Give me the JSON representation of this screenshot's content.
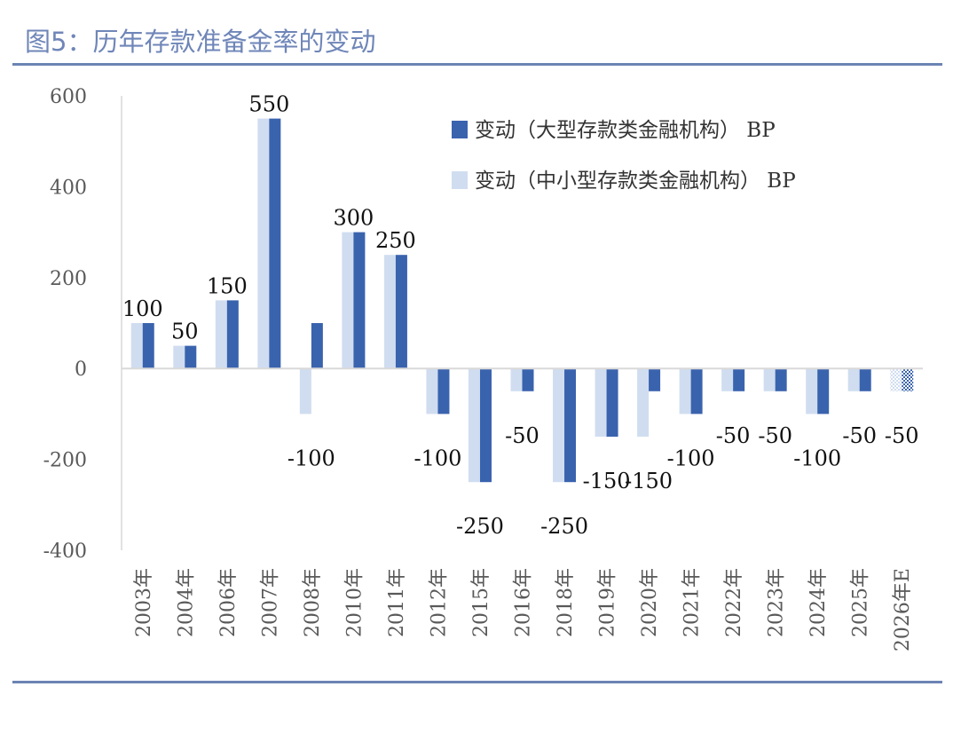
{
  "title": "图5：历年存款准备金率的变动",
  "chart_data": {
    "type": "bar",
    "title": "图5：历年存款准备金率的变动",
    "xlabel": "",
    "ylabel": "",
    "ylim": [
      -400,
      600
    ],
    "yticks": [
      600,
      400,
      200,
      0,
      -200,
      -400
    ],
    "grid": false,
    "legend": "top-right",
    "categories": [
      "2003年",
      "2004年",
      "2006年",
      "2007年",
      "2008年",
      "2010年",
      "2011年",
      "2012年",
      "2015年",
      "2016年",
      "2018年",
      "2019年",
      "2020年",
      "2021年",
      "2022年",
      "2023年",
      "2024年",
      "2025年",
      "2026年E"
    ],
    "series": [
      {
        "name": "变动（大型存款类金融机构） BP",
        "color": "#3a63ae",
        "values": [
          100,
          50,
          150,
          550,
          100,
          300,
          250,
          -100,
          -250,
          -50,
          -250,
          -150,
          -50,
          -100,
          -50,
          -50,
          -100,
          -50,
          -50
        ]
      },
      {
        "name": "变动（中小型存款类金融机构） BP",
        "color": "#d0ddf0",
        "values": [
          100,
          50,
          150,
          550,
          -100,
          300,
          250,
          -100,
          -250,
          -50,
          -250,
          -150,
          -150,
          -100,
          -50,
          -50,
          -100,
          -50,
          -50
        ]
      }
    ],
    "data_labels": [
      "100",
      "50",
      "150",
      "550",
      "-100",
      "300",
      "250",
      "-100",
      "-250",
      "-50",
      "-250",
      "-150",
      "-150",
      "-100",
      "-50",
      "-50",
      "-100",
      "-50",
      "-50"
    ],
    "patterned_categories": [
      "2026年E"
    ]
  }
}
